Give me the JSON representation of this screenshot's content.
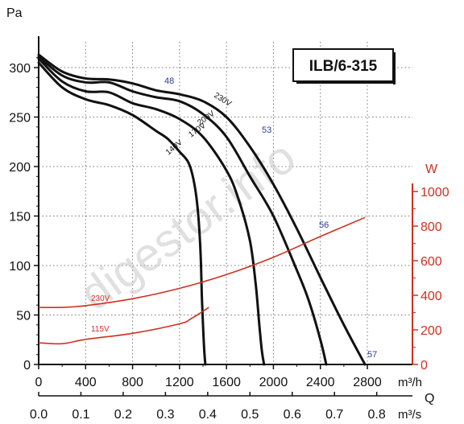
{
  "chart_data": {
    "type": "line",
    "title": "ILB/6-315",
    "watermark": "digestor.info",
    "y_left": {
      "label": "Pa",
      "range": [
        0,
        320
      ],
      "ticks": [
        0,
        50,
        100,
        150,
        200,
        250,
        300
      ]
    },
    "y_right": {
      "label": "W",
      "range": [
        0,
        1000
      ],
      "ticks": [
        0,
        200,
        400,
        600,
        800,
        1000
      ],
      "color": "#d0301f"
    },
    "x_bottom": {
      "label": "m³/h",
      "range": [
        0,
        2800
      ],
      "ticks": [
        0,
        400,
        800,
        1200,
        1600,
        2000,
        2400,
        2800
      ]
    },
    "x_secondary": {
      "label": "m³/s",
      "axis_name": "Q",
      "ticks": [
        "0.0",
        "0.1",
        "0.2",
        "0.3",
        "0.4",
        "0.5",
        "0.6",
        "0.7",
        "0.8"
      ],
      "values": [
        0,
        0.1,
        0.2,
        0.3,
        0.4,
        0.5,
        0.6,
        0.7,
        0.8
      ]
    },
    "pressure_series": [
      {
        "name": "230V",
        "color": "#111111",
        "x": [
          0,
          200,
          400,
          600,
          800,
          1000,
          1200,
          1400,
          1600,
          1800,
          2000,
          2200,
          2400,
          2600,
          2780
        ],
        "y": [
          313,
          296,
          289,
          288,
          284,
          277,
          273,
          266,
          250,
          220,
          182,
          137,
          88,
          40,
          0
        ]
      },
      {
        "name": "200V",
        "color": "#111111",
        "x": [
          0,
          200,
          400,
          600,
          800,
          1000,
          1200,
          1400,
          1600,
          1800,
          2000,
          2200,
          2300,
          2400,
          2450
        ],
        "y": [
          311,
          292,
          285,
          285,
          276,
          270,
          266,
          253,
          230,
          190,
          150,
          95,
          65,
          25,
          0
        ]
      },
      {
        "name": "170V",
        "color": "#111111",
        "x": [
          0,
          200,
          400,
          600,
          800,
          1000,
          1200,
          1400,
          1600,
          1700,
          1800,
          1850,
          1880,
          1900,
          1920
        ],
        "y": [
          309,
          286,
          276,
          275,
          264,
          258,
          248,
          230,
          196,
          168,
          125,
          80,
          40,
          15,
          0
        ]
      },
      {
        "name": "140V",
        "color": "#111111",
        "x": [
          0,
          200,
          400,
          600,
          800,
          1000,
          1100,
          1200,
          1280,
          1330,
          1360,
          1380,
          1390,
          1400,
          1410,
          1420
        ],
        "y": [
          305,
          280,
          268,
          262,
          252,
          236,
          228,
          215,
          203,
          180,
          150,
          110,
          70,
          40,
          15,
          0
        ]
      }
    ],
    "power_series": [
      {
        "name": "230V",
        "color": "#d0301f",
        "x": [
          0,
          200,
          400,
          800,
          1200,
          1600,
          2000,
          2400,
          2780
        ],
        "y_watts": [
          330,
          330,
          340,
          380,
          440,
          520,
          620,
          740,
          850
        ]
      },
      {
        "name": "115V",
        "color": "#d0301f",
        "x": [
          0,
          200,
          400,
          800,
          1200,
          1300,
          1450
        ],
        "y_watts": [
          125,
          120,
          145,
          180,
          235,
          265,
          330
        ]
      }
    ],
    "efficiency_labels": [
      "48",
      "53",
      "56",
      "57"
    ]
  }
}
